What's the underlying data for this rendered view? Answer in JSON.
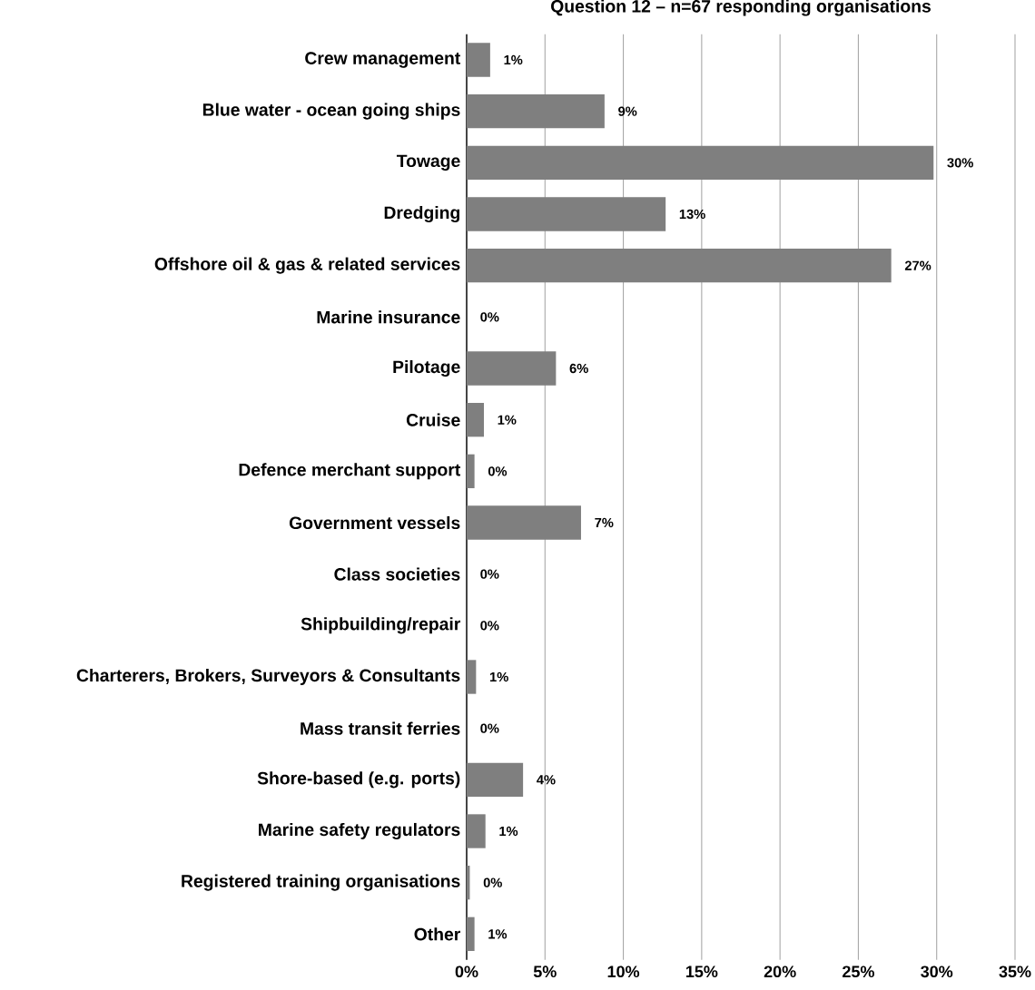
{
  "chart_data": {
    "type": "bar",
    "orientation": "horizontal",
    "title": "Question 12 – n=67 responding organisations",
    "categories": [
      "Crew management",
      "Blue water - ocean going ships",
      "Towage",
      "Dredging",
      "Offshore oil & gas & related services",
      "Marine insurance",
      "Pilotage",
      "Cruise",
      "Defence merchant support",
      "Government vessels",
      "Class societies",
      "Shipbuilding/repair",
      "Charterers, Brokers, Surveyors & Consultants",
      "Mass transit ferries",
      "Shore-based (e.g. ports)",
      "Marine safety regulators",
      "Registered training organisations",
      "Other"
    ],
    "values": [
      1.5,
      8.8,
      29.8,
      12.7,
      27.1,
      0,
      5.7,
      1.1,
      0.5,
      7.3,
      0,
      0,
      0.6,
      0,
      3.6,
      1.2,
      0.2,
      0.5
    ],
    "value_labels": [
      "1%",
      "9%",
      "30%",
      "13%",
      "27%",
      "0%",
      "6%",
      "1%",
      "0%",
      "7%",
      "0%",
      "0%",
      "1%",
      "0%",
      "4%",
      "1%",
      "0%",
      "1%"
    ],
    "color": "#7f7f7f",
    "xlim": [
      0,
      35
    ],
    "xticks": [
      {
        "value": 0,
        "label": "0%"
      },
      {
        "value": 5,
        "label": "5%"
      },
      {
        "value": 10,
        "label": "10%"
      },
      {
        "value": 15,
        "label": "15%"
      },
      {
        "value": 20,
        "label": "20%"
      },
      {
        "value": 25,
        "label": "25%"
      },
      {
        "value": 30,
        "label": "30%"
      },
      {
        "value": 35,
        "label": "35%"
      }
    ],
    "grid": "x"
  }
}
